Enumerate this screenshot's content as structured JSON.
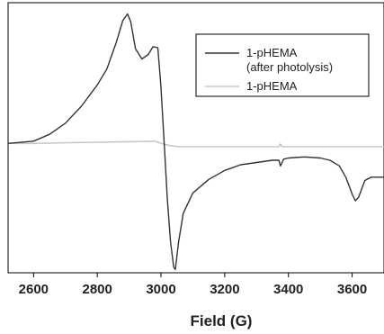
{
  "chart_data": {
    "type": "line",
    "xlabel": "Field (G)",
    "ylabel": "",
    "xlim": [
      2520,
      3700
    ],
    "ylim": [
      -1.15,
      1.25
    ],
    "x_ticks": [
      "2600",
      "2800",
      "3000",
      "3200",
      "3400",
      "3600"
    ],
    "x_tick_values": [
      2600,
      2800,
      3000,
      3200,
      3400,
      3600
    ],
    "y_ticks_visible": false,
    "grid": false,
    "legend_position": "top-right",
    "series": [
      {
        "name": "1-pHEMA",
        "name_line2": "(after photolysis)",
        "color": "#333333",
        "x": [
          2520,
          2600,
          2650,
          2700,
          2750,
          2800,
          2830,
          2860,
          2880,
          2895,
          2905,
          2920,
          2940,
          2960,
          2975,
          2990,
          3000,
          3010,
          3020,
          3030,
          3040,
          3045,
          3055,
          3070,
          3100,
          3150,
          3200,
          3250,
          3300,
          3350,
          3370,
          3375,
          3385,
          3400,
          3450,
          3500,
          3530,
          3560,
          3580,
          3600,
          3610,
          3620,
          3640,
          3660,
          3700
        ],
        "y": [
          0.0,
          0.02,
          0.08,
          0.18,
          0.33,
          0.52,
          0.66,
          0.9,
          1.09,
          1.15,
          1.08,
          0.84,
          0.75,
          0.79,
          0.86,
          0.85,
          0.5,
          0.0,
          -0.5,
          -0.88,
          -1.1,
          -1.12,
          -0.88,
          -0.62,
          -0.44,
          -0.32,
          -0.24,
          -0.19,
          -0.17,
          -0.15,
          -0.15,
          -0.2,
          -0.14,
          -0.13,
          -0.12,
          -0.13,
          -0.15,
          -0.2,
          -0.3,
          -0.45,
          -0.51,
          -0.48,
          -0.33,
          -0.3,
          -0.3
        ]
      },
      {
        "name": "1-pHEMA",
        "color": "#c8c8c8",
        "x": [
          2520,
          2600,
          2700,
          2800,
          2900,
          2980,
          3000,
          3030,
          3060,
          3100,
          3200,
          3300,
          3370,
          3375,
          3380,
          3400,
          3500,
          3600,
          3700
        ],
        "y": [
          0.0,
          0.0,
          0.005,
          0.01,
          0.015,
          0.02,
          0.0,
          -0.02,
          -0.03,
          -0.03,
          -0.03,
          -0.03,
          -0.03,
          -0.005,
          -0.03,
          -0.03,
          -0.03,
          -0.03,
          -0.03
        ]
      }
    ]
  }
}
